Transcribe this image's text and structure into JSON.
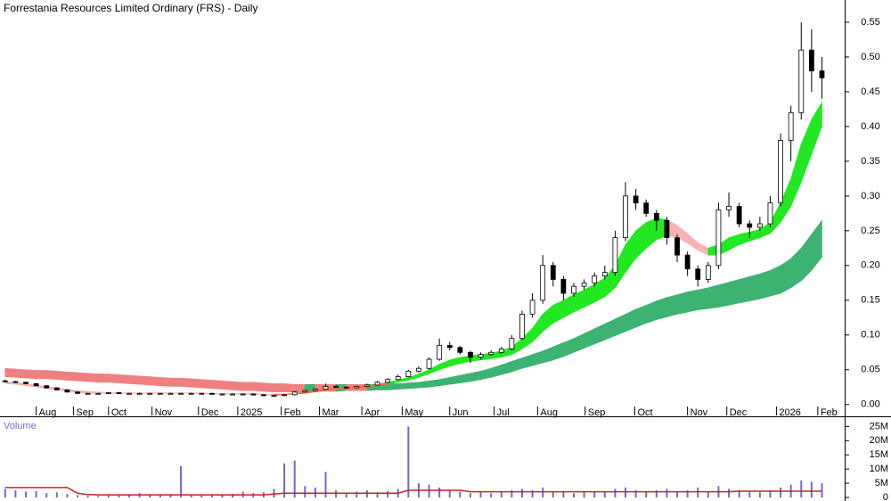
{
  "chart_data": [
    {
      "type": "candlestick",
      "title": "Forrestania Resources Limited Ordinary (FRS) - Daily",
      "x": [
        0,
        1,
        2,
        3,
        4,
        5,
        6,
        7,
        8,
        9,
        10,
        11,
        12,
        13,
        14,
        15,
        16,
        17,
        18,
        19,
        20,
        21,
        22,
        23,
        24,
        25,
        26,
        27,
        28,
        29,
        30,
        31,
        32,
        33,
        34,
        35,
        36,
        37,
        38,
        39,
        40,
        41,
        42,
        43,
        44,
        45,
        46,
        47,
        48,
        49,
        50,
        51,
        52,
        53,
        54,
        55,
        56,
        57,
        58,
        59,
        60,
        61,
        62,
        63,
        64,
        65,
        66,
        67,
        68,
        69,
        70,
        71,
        72,
        73,
        74,
        75,
        76,
        77,
        78,
        79
      ],
      "open": [
        0.034,
        0.033,
        0.032,
        0.03,
        0.027,
        0.024,
        0.021,
        0.018,
        0.016,
        0.016,
        0.016,
        0.017,
        0.016,
        0.016,
        0.016,
        0.016,
        0.016,
        0.016,
        0.016,
        0.016,
        0.016,
        0.015,
        0.015,
        0.015,
        0.015,
        0.014,
        0.013,
        0.013,
        0.014,
        0.018,
        0.02,
        0.022,
        0.026,
        0.025,
        0.024,
        0.026,
        0.028,
        0.032,
        0.036,
        0.04,
        0.048,
        0.052,
        0.065,
        0.085,
        0.082,
        0.075,
        0.068,
        0.072,
        0.075,
        0.08,
        0.095,
        0.13,
        0.15,
        0.2,
        0.18,
        0.16,
        0.17,
        0.175,
        0.185,
        0.19,
        0.24,
        0.3,
        0.29,
        0.275,
        0.265,
        0.24,
        0.215,
        0.195,
        0.18,
        0.2,
        0.28,
        0.285,
        0.26,
        0.255,
        0.26,
        0.29,
        0.38,
        0.42,
        0.51,
        0.48
      ],
      "high": [
        0.036,
        0.034,
        0.033,
        0.031,
        0.028,
        0.025,
        0.022,
        0.019,
        0.017,
        0.017,
        0.018,
        0.018,
        0.017,
        0.017,
        0.017,
        0.017,
        0.017,
        0.017,
        0.017,
        0.017,
        0.017,
        0.016,
        0.016,
        0.016,
        0.016,
        0.015,
        0.014,
        0.015,
        0.019,
        0.021,
        0.023,
        0.03,
        0.028,
        0.026,
        0.027,
        0.03,
        0.034,
        0.038,
        0.043,
        0.05,
        0.055,
        0.068,
        0.095,
        0.09,
        0.084,
        0.077,
        0.075,
        0.078,
        0.083,
        0.1,
        0.135,
        0.16,
        0.215,
        0.205,
        0.185,
        0.175,
        0.18,
        0.19,
        0.2,
        0.25,
        0.32,
        0.31,
        0.295,
        0.28,
        0.27,
        0.245,
        0.22,
        0.2,
        0.205,
        0.29,
        0.305,
        0.29,
        0.265,
        0.27,
        0.3,
        0.39,
        0.43,
        0.55,
        0.54,
        0.5
      ],
      "low": [
        0.032,
        0.031,
        0.029,
        0.026,
        0.023,
        0.02,
        0.017,
        0.015,
        0.015,
        0.015,
        0.015,
        0.015,
        0.015,
        0.015,
        0.015,
        0.015,
        0.015,
        0.015,
        0.015,
        0.015,
        0.014,
        0.014,
        0.014,
        0.014,
        0.013,
        0.012,
        0.012,
        0.012,
        0.013,
        0.017,
        0.019,
        0.021,
        0.024,
        0.023,
        0.023,
        0.025,
        0.027,
        0.031,
        0.035,
        0.039,
        0.046,
        0.05,
        0.063,
        0.078,
        0.072,
        0.06,
        0.065,
        0.07,
        0.073,
        0.078,
        0.093,
        0.125,
        0.145,
        0.17,
        0.15,
        0.155,
        0.165,
        0.17,
        0.18,
        0.185,
        0.235,
        0.28,
        0.27,
        0.25,
        0.23,
        0.205,
        0.185,
        0.17,
        0.175,
        0.195,
        0.27,
        0.255,
        0.24,
        0.25,
        0.255,
        0.285,
        0.35,
        0.41,
        0.45,
        0.44
      ],
      "close": [
        0.033,
        0.032,
        0.03,
        0.027,
        0.024,
        0.021,
        0.018,
        0.016,
        0.016,
        0.016,
        0.017,
        0.016,
        0.016,
        0.016,
        0.016,
        0.016,
        0.016,
        0.016,
        0.016,
        0.016,
        0.015,
        0.015,
        0.015,
        0.015,
        0.014,
        0.013,
        0.013,
        0.014,
        0.018,
        0.02,
        0.022,
        0.026,
        0.025,
        0.024,
        0.026,
        0.028,
        0.032,
        0.036,
        0.04,
        0.048,
        0.052,
        0.065,
        0.085,
        0.082,
        0.075,
        0.068,
        0.072,
        0.075,
        0.08,
        0.095,
        0.13,
        0.15,
        0.2,
        0.18,
        0.16,
        0.17,
        0.175,
        0.185,
        0.19,
        0.24,
        0.3,
        0.29,
        0.275,
        0.265,
        0.24,
        0.215,
        0.195,
        0.18,
        0.2,
        0.28,
        0.285,
        0.26,
        0.255,
        0.26,
        0.29,
        0.38,
        0.42,
        0.51,
        0.48,
        0.47
      ],
      "up_color": "#ffffff",
      "down_color": "#000000",
      "bands": [
        {
          "upper": [
            0.052,
            0.051,
            0.05,
            0.049,
            0.049,
            0.048,
            0.047,
            0.046,
            0.045,
            0.044,
            0.044,
            0.043,
            0.042,
            0.041,
            0.04,
            0.039,
            0.038,
            0.038,
            0.037,
            0.036,
            0.035,
            0.034,
            0.033,
            0.032,
            0.032,
            0.031,
            0.03,
            0.03,
            0.029,
            0.029,
            0.029,
            0.029,
            0.029,
            0.029,
            0.029,
            0.029,
            0.029,
            0.03,
            0.03,
            0.031,
            0.032,
            0.034,
            0.036,
            0.039,
            0.042,
            0.045,
            0.048,
            0.052,
            0.057,
            0.062,
            0.067,
            0.072,
            0.077,
            0.083,
            0.089,
            0.095,
            0.102,
            0.109,
            0.116,
            0.123,
            0.13,
            0.137,
            0.143,
            0.149,
            0.154,
            0.158,
            0.162,
            0.165,
            0.168,
            0.172,
            0.176,
            0.18,
            0.184,
            0.188,
            0.193,
            0.2,
            0.21,
            0.225,
            0.245,
            0.265
          ],
          "lower": [
            0.04,
            0.039,
            0.038,
            0.037,
            0.037,
            0.036,
            0.035,
            0.034,
            0.033,
            0.032,
            0.032,
            0.031,
            0.03,
            0.029,
            0.028,
            0.027,
            0.026,
            0.026,
            0.025,
            0.024,
            0.023,
            0.022,
            0.021,
            0.02,
            0.02,
            0.019,
            0.018,
            0.018,
            0.018,
            0.018,
            0.019,
            0.019,
            0.019,
            0.02,
            0.02,
            0.02,
            0.021,
            0.021,
            0.022,
            0.023,
            0.024,
            0.025,
            0.027,
            0.029,
            0.031,
            0.033,
            0.036,
            0.039,
            0.043,
            0.047,
            0.052,
            0.056,
            0.06,
            0.064,
            0.069,
            0.075,
            0.081,
            0.087,
            0.093,
            0.099,
            0.105,
            0.111,
            0.117,
            0.122,
            0.126,
            0.13,
            0.133,
            0.136,
            0.138,
            0.14,
            0.143,
            0.146,
            0.149,
            0.152,
            0.156,
            0.16,
            0.168,
            0.178,
            0.193,
            0.212
          ],
          "rising_color": "#3cb371",
          "falling_color": "#f08080"
        },
        {
          "upper": [
            0.033,
            0.032,
            0.03,
            0.028,
            0.026,
            0.024,
            0.022,
            0.02,
            0.019,
            0.018,
            0.017,
            0.017,
            0.017,
            0.017,
            0.017,
            0.017,
            0.017,
            0.017,
            0.017,
            0.017,
            0.016,
            0.016,
            0.016,
            0.016,
            0.016,
            0.015,
            0.015,
            0.015,
            0.016,
            0.018,
            0.02,
            0.022,
            0.024,
            0.025,
            0.026,
            0.027,
            0.029,
            0.032,
            0.035,
            0.039,
            0.044,
            0.05,
            0.058,
            0.064,
            0.068,
            0.07,
            0.072,
            0.074,
            0.077,
            0.083,
            0.095,
            0.11,
            0.13,
            0.143,
            0.15,
            0.158,
            0.165,
            0.173,
            0.182,
            0.2,
            0.23,
            0.25,
            0.262,
            0.268,
            0.266,
            0.258,
            0.246,
            0.233,
            0.225,
            0.23,
            0.24,
            0.245,
            0.248,
            0.252,
            0.262,
            0.29,
            0.325,
            0.375,
            0.41,
            0.435
          ],
          "lower": [
            0.03,
            0.029,
            0.027,
            0.025,
            0.023,
            0.021,
            0.019,
            0.017,
            0.016,
            0.016,
            0.016,
            0.016,
            0.016,
            0.016,
            0.016,
            0.016,
            0.016,
            0.016,
            0.016,
            0.016,
            0.015,
            0.015,
            0.015,
            0.015,
            0.014,
            0.014,
            0.013,
            0.014,
            0.015,
            0.016,
            0.018,
            0.02,
            0.022,
            0.023,
            0.024,
            0.025,
            0.027,
            0.029,
            0.032,
            0.035,
            0.039,
            0.044,
            0.05,
            0.055,
            0.059,
            0.062,
            0.064,
            0.066,
            0.068,
            0.072,
            0.08,
            0.09,
            0.105,
            0.117,
            0.125,
            0.133,
            0.14,
            0.147,
            0.155,
            0.168,
            0.19,
            0.21,
            0.225,
            0.237,
            0.243,
            0.24,
            0.232,
            0.222,
            0.215,
            0.215,
            0.222,
            0.23,
            0.235,
            0.24,
            0.246,
            0.262,
            0.285,
            0.32,
            0.36,
            0.4
          ],
          "rising_color": "#22e822",
          "falling_color": "#f7b3b3",
          "below_color": "#f26b3a"
        }
      ],
      "xlim": [
        -0.5,
        81.2
      ],
      "xticks": [
        {
          "value": 3.0,
          "label": "Aug"
        },
        {
          "value": 6.6,
          "label": "Sep"
        },
        {
          "value": 10.0,
          "label": "Oct"
        },
        {
          "value": 14.2,
          "label": "Nov"
        },
        {
          "value": 18.7,
          "label": "Dec"
        },
        {
          "value": 22.5,
          "label": "2025"
        },
        {
          "value": 26.7,
          "label": "Feb"
        },
        {
          "value": 30.4,
          "label": "Mar"
        },
        {
          "value": 34.5,
          "label": "Apr"
        },
        {
          "value": 38.4,
          "label": "May"
        },
        {
          "value": 43.0,
          "label": "Jun"
        },
        {
          "value": 47.3,
          "label": "Jul"
        },
        {
          "value": 51.5,
          "label": "Aug"
        },
        {
          "value": 56.1,
          "label": "Sep"
        },
        {
          "value": 60.9,
          "label": "Oct"
        },
        {
          "value": 66.0,
          "label": "Nov"
        },
        {
          "value": 69.8,
          "label": "Dec"
        },
        {
          "value": 74.6,
          "label": "2026"
        },
        {
          "value": 78.6,
          "label": "Feb"
        }
      ],
      "ylim": [
        -0.008,
        0.582
      ],
      "yticks": [
        {
          "value": 0,
          "label": "0.00"
        },
        0.05,
        {
          "value": 0.1,
          "label": "0.10"
        },
        0.15,
        {
          "value": 0.2,
          "label": "0.20"
        },
        0.25,
        {
          "value": 0.3,
          "label": "0.30"
        },
        0.35,
        {
          "value": 0.4,
          "label": "0.40"
        },
        0.45,
        {
          "value": 0.5,
          "label": "0.50"
        },
        0.55
      ]
    },
    {
      "type": "bar",
      "title": "Volume",
      "values": [
        3000000,
        2500000,
        2000000,
        2200000,
        1500000,
        1800000,
        1200000,
        800000,
        600000,
        500000,
        700000,
        600000,
        800000,
        1500000,
        1000000,
        700000,
        1200000,
        11000000,
        800000,
        600000,
        900000,
        800000,
        1200000,
        2000000,
        1500000,
        1800000,
        3000000,
        12000000,
        13000000,
        4000000,
        3500000,
        9000000,
        2500000,
        1500000,
        2000000,
        2500000,
        1800000,
        2200000,
        3000000,
        25000000,
        5000000,
        4500000,
        3500000,
        2500000,
        2000000,
        1500000,
        1800000,
        1500000,
        2000000,
        2500000,
        3000000,
        2500000,
        3500000,
        2000000,
        1800000,
        1500000,
        2000000,
        2200000,
        1800000,
        3000000,
        3500000,
        2500000,
        2000000,
        2500000,
        3000000,
        2000000,
        2500000,
        3500000,
        2000000,
        4000000,
        3000000,
        2500000,
        2000000,
        1800000,
        2500000,
        3500000,
        4500000,
        6000000,
        5500000,
        5000000
      ],
      "color": "#6b6bd0",
      "average": {
        "values": [
          3500000,
          3500000,
          3500000,
          3500000,
          3500000,
          3500000,
          3500000,
          1500000,
          1000000,
          900000,
          900000,
          900000,
          900000,
          900000,
          900000,
          900000,
          900000,
          900000,
          900000,
          900000,
          900000,
          900000,
          900000,
          900000,
          900000,
          900000,
          1200000,
          1500000,
          1500000,
          1500000,
          1500000,
          1500000,
          1500000,
          1500000,
          1500000,
          1500000,
          1500000,
          1500000,
          1500000,
          2500000,
          2500000,
          2500000,
          2500000,
          2500000,
          2500000,
          2000000,
          2000000,
          2000000,
          2000000,
          2000000,
          2000000,
          2000000,
          2000000,
          2000000,
          2000000,
          2000000,
          2000000,
          2000000,
          2000000,
          2000000,
          2000000,
          2000000,
          2000000,
          2000000,
          2000000,
          2000000,
          2000000,
          2000000,
          2000000,
          2000000,
          2000000,
          2200000,
          2200000,
          2200000,
          2200000,
          2200000,
          2200000,
          2200000,
          2200000,
          2200000
        ],
        "color": "#cc2222"
      },
      "ylim": [
        0,
        27000000
      ],
      "yticks": [
        0,
        {
          "value": 5000000,
          "label": "5M"
        },
        {
          "value": 10000000,
          "label": "10M"
        },
        {
          "value": 15000000,
          "label": "15M"
        },
        {
          "value": 20000000,
          "label": "20M"
        },
        {
          "value": 25000000,
          "label": "25M"
        }
      ]
    }
  ]
}
